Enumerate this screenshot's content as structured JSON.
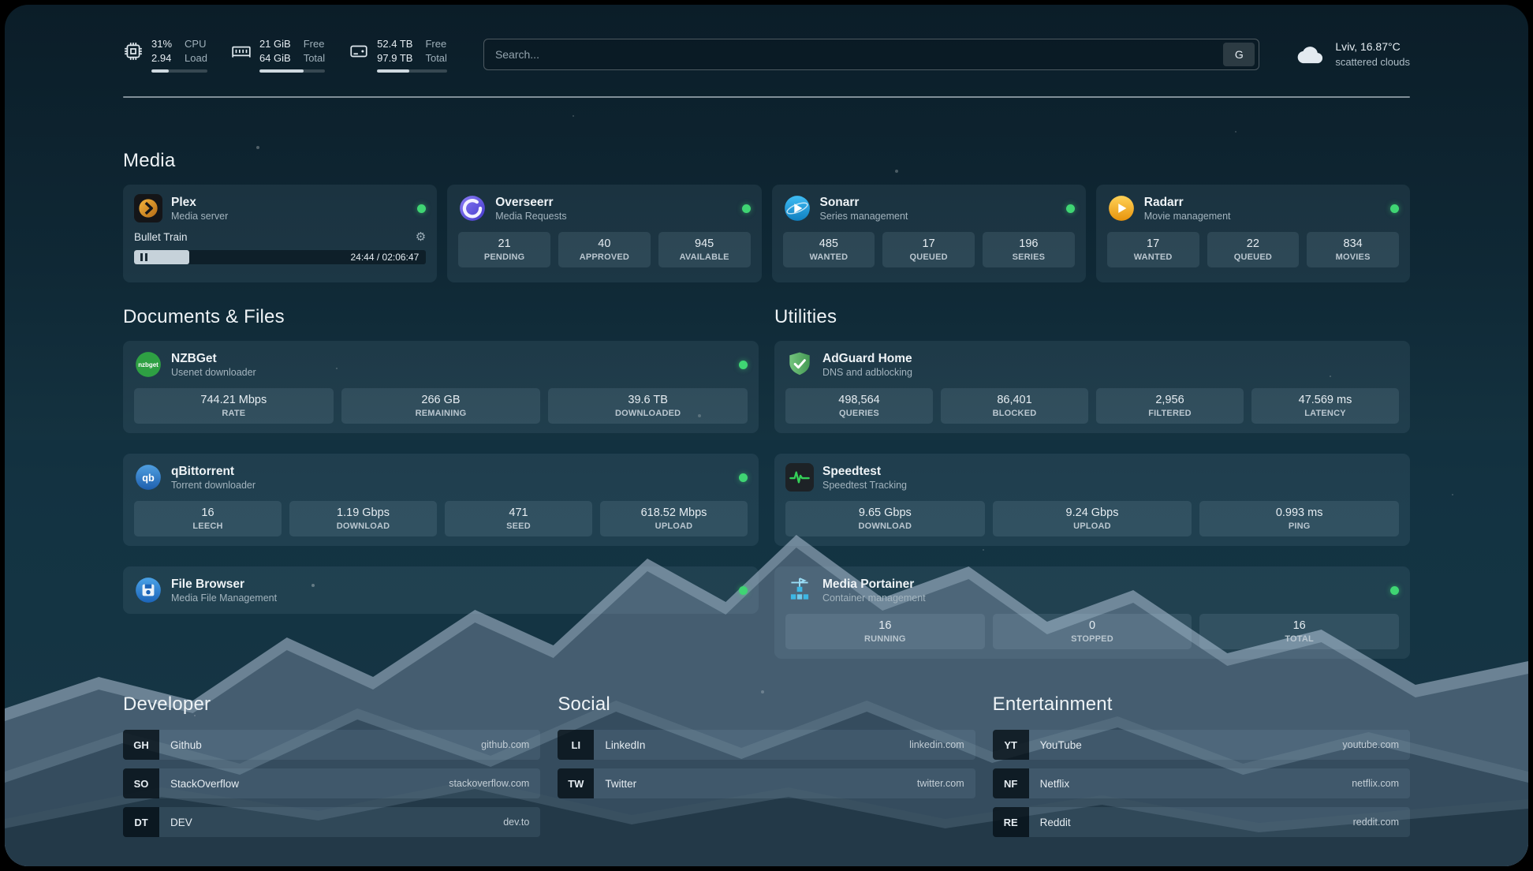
{
  "topbar": {
    "cpu": {
      "value_top": "31%",
      "value_bottom": "2.94",
      "label_top": "CPU",
      "label_bottom": "Load",
      "progress": 31
    },
    "ram": {
      "value_top": "21 GiB",
      "value_bottom": "64 GiB",
      "label_top": "Free",
      "label_bottom": "Total",
      "progress": 67
    },
    "disk": {
      "value_top": "52.4 TB",
      "value_bottom": "97.9 TB",
      "label_top": "Free",
      "label_bottom": "Total",
      "progress": 46
    },
    "search": {
      "placeholder": "Search...",
      "engine_button": "G"
    },
    "weather": {
      "location": "Lviv, 16.87°C",
      "condition": "scattered clouds"
    }
  },
  "sections": {
    "media": {
      "title": "Media",
      "plex": {
        "name": "Plex",
        "subtitle": "Media server",
        "now_playing": "Bullet Train",
        "elapsed_total": "24:44 / 02:06:47",
        "progress": 19
      },
      "overseerr": {
        "name": "Overseerr",
        "subtitle": "Media Requests",
        "stats": [
          {
            "value": "21",
            "label": "PENDING"
          },
          {
            "value": "40",
            "label": "APPROVED"
          },
          {
            "value": "945",
            "label": "AVAILABLE"
          }
        ]
      },
      "sonarr": {
        "name": "Sonarr",
        "subtitle": "Series management",
        "stats": [
          {
            "value": "485",
            "label": "WANTED"
          },
          {
            "value": "17",
            "label": "QUEUED"
          },
          {
            "value": "196",
            "label": "SERIES"
          }
        ]
      },
      "radarr": {
        "name": "Radarr",
        "subtitle": "Movie management",
        "stats": [
          {
            "value": "17",
            "label": "WANTED"
          },
          {
            "value": "22",
            "label": "QUEUED"
          },
          {
            "value": "834",
            "label": "MOVIES"
          }
        ]
      }
    },
    "documents": {
      "title": "Documents & Files",
      "nzbget": {
        "name": "NZBGet",
        "subtitle": "Usenet downloader",
        "stats": [
          {
            "value": "744.21 Mbps",
            "label": "RATE"
          },
          {
            "value": "266 GB",
            "label": "REMAINING"
          },
          {
            "value": "39.6 TB",
            "label": "DOWNLOADED"
          }
        ]
      },
      "qbittorrent": {
        "name": "qBittorrent",
        "subtitle": "Torrent downloader",
        "stats": [
          {
            "value": "16",
            "label": "LEECH"
          },
          {
            "value": "1.19 Gbps",
            "label": "DOWNLOAD"
          },
          {
            "value": "471",
            "label": "SEED"
          },
          {
            "value": "618.52 Mbps",
            "label": "UPLOAD"
          }
        ]
      },
      "filebrowser": {
        "name": "File Browser",
        "subtitle": "Media File Management"
      }
    },
    "utilities": {
      "title": "Utilities",
      "adguard": {
        "name": "AdGuard Home",
        "subtitle": "DNS and adblocking",
        "stats": [
          {
            "value": "498,564",
            "label": "QUERIES"
          },
          {
            "value": "86,401",
            "label": "BLOCKED"
          },
          {
            "value": "2,956",
            "label": "FILTERED"
          },
          {
            "value": "47.569 ms",
            "label": "LATENCY"
          }
        ]
      },
      "speedtest": {
        "name": "Speedtest",
        "subtitle": "Speedtest Tracking",
        "stats": [
          {
            "value": "9.65 Gbps",
            "label": "DOWNLOAD"
          },
          {
            "value": "9.24 Gbps",
            "label": "UPLOAD"
          },
          {
            "value": "0.993 ms",
            "label": "PING"
          }
        ]
      },
      "portainer": {
        "name": "Media Portainer",
        "subtitle": "Container management",
        "stats": [
          {
            "value": "16",
            "label": "RUNNING"
          },
          {
            "value": "0",
            "label": "STOPPED"
          },
          {
            "value": "16",
            "label": "TOTAL"
          }
        ]
      }
    },
    "bookmarks": {
      "developer": {
        "title": "Developer",
        "items": [
          {
            "abbr": "GH",
            "name": "Github",
            "url": "github.com"
          },
          {
            "abbr": "SO",
            "name": "StackOverflow",
            "url": "stackoverflow.com"
          },
          {
            "abbr": "DT",
            "name": "DEV",
            "url": "dev.to"
          }
        ]
      },
      "social": {
        "title": "Social",
        "items": [
          {
            "abbr": "LI",
            "name": "LinkedIn",
            "url": "linkedin.com"
          },
          {
            "abbr": "TW",
            "name": "Twitter",
            "url": "twitter.com"
          }
        ]
      },
      "entertainment": {
        "title": "Entertainment",
        "items": [
          {
            "abbr": "YT",
            "name": "YouTube",
            "url": "youtube.com"
          },
          {
            "abbr": "NF",
            "name": "Netflix",
            "url": "netflix.com"
          },
          {
            "abbr": "RE",
            "name": "Reddit",
            "url": "reddit.com"
          }
        ]
      }
    }
  },
  "icons": {
    "gear": "⚙",
    "cpu": "svg-chip",
    "ram": "svg-memory-module",
    "disk": "svg-hard-drive",
    "weather_cloud": "svg-cloud",
    "pause": "css-pause-bars",
    "plex": "svg-amber-circle-chevron",
    "overseerr": "svg-purple-swirl",
    "sonarr": "svg-blue-play",
    "radarr": "svg-amber-play",
    "nzbget": "svg-green-circle-wordmark",
    "qbittorrent": "svg-blue-circle-qb",
    "filebrowser": "svg-blue-circle-floppy",
    "adguard": "svg-green-shield-check",
    "speedtest": "svg-dark-square-pulse",
    "portainer": "svg-crane-containers",
    "status_dot": "css-green-dot"
  },
  "colors": {
    "status_online": "#3fd573",
    "accent_pulse_green": "#34d058",
    "plex_amber": "#e5a00d",
    "sonarr_blue": "#35a6dd",
    "radarr_amber": "#f0a733",
    "adguard_green": "#68bc71",
    "overseerr_purple": "#6d5cf0",
    "background_teal": "#12303f",
    "text_primary": "#e6edf2",
    "text_muted": "#9fb0ba"
  }
}
